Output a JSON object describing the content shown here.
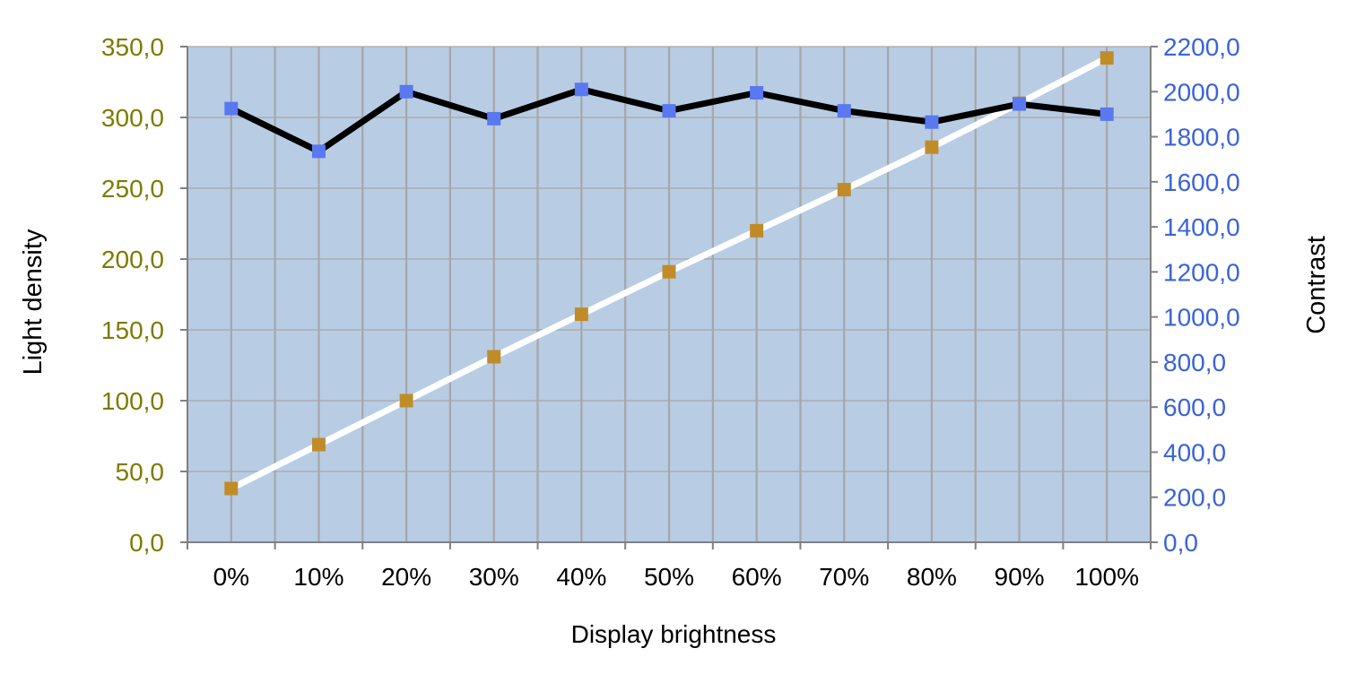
{
  "chart_data": {
    "type": "line",
    "x_axis": {
      "label": "Display brightness",
      "categories": [
        "0%",
        "10%",
        "20%",
        "30%",
        "40%",
        "50%",
        "60%",
        "70%",
        "80%",
        "90%",
        "100%"
      ]
    },
    "y_axis_left": {
      "label": "Light density",
      "range": [
        0,
        350
      ],
      "ticks": [
        "0,0",
        "50,0",
        "100,0",
        "150,0",
        "200,0",
        "250,0",
        "300,0",
        "350,0"
      ],
      "color": "#7f7a00"
    },
    "y_axis_right": {
      "label": "Contrast",
      "range": [
        0,
        2200
      ],
      "ticks": [
        "0,0",
        "200,0",
        "400,0",
        "600,0",
        "800,0",
        "1000,0",
        "1200,0",
        "1400,0",
        "1600,0",
        "1800,0",
        "2000,0",
        "2200,0"
      ],
      "color": "#3a63d8"
    },
    "series": [
      {
        "axis": "left",
        "values": [
          38,
          69,
          100,
          131,
          161,
          191,
          220,
          249,
          279,
          310,
          342
        ],
        "line_color": "#ffffff",
        "marker_color": "#c08c28"
      },
      {
        "axis": "right",
        "values": [
          1925,
          1735,
          2000,
          1880,
          2010,
          1915,
          1995,
          1915,
          1865,
          1945,
          1900
        ],
        "line_color": "#000000",
        "marker_color": "#5a78f0"
      }
    ],
    "plot_background": "#b8cce4",
    "grid": true,
    "grid_color": "#a6a6a6",
    "legend": "none"
  }
}
